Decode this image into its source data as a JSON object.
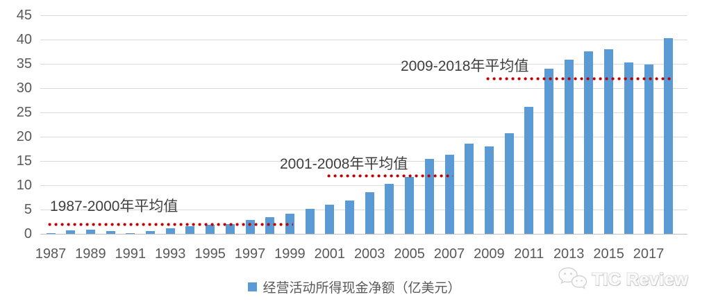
{
  "chart_data": {
    "type": "bar",
    "title": "",
    "categories": [
      1987,
      1988,
      1989,
      1990,
      1991,
      1992,
      1993,
      1994,
      1995,
      1996,
      1997,
      1998,
      1999,
      2000,
      2001,
      2002,
      2003,
      2004,
      2005,
      2006,
      2007,
      2008,
      2009,
      2010,
      2011,
      2012,
      2013,
      2014,
      2015,
      2016,
      2017,
      2018
    ],
    "values": [
      0.1,
      0.7,
      0.9,
      0.5,
      0.2,
      0.6,
      1.2,
      1.5,
      1.8,
      2.0,
      2.9,
      3.4,
      4.1,
      5.1,
      6.0,
      6.9,
      8.5,
      10.3,
      11.7,
      15.4,
      16.3,
      18.6,
      18.0,
      20.7,
      26.1,
      34.0,
      35.8,
      37.5,
      38.0,
      35.3,
      34.9,
      40.3
    ],
    "xlabel": "",
    "ylabel": "",
    "ylim": [
      0,
      45
    ],
    "ytick_interval": 5,
    "ytick_labels": [
      "0",
      "5",
      "10",
      "15",
      "20",
      "25",
      "30",
      "35",
      "40",
      "45"
    ],
    "xtick_labels": [
      "1987",
      "1989",
      "1991",
      "1993",
      "1995",
      "1997",
      "1999",
      "2001",
      "2003",
      "2005",
      "2007",
      "2009",
      "2011",
      "2013",
      "2015",
      "2017"
    ],
    "grid": "horizontal",
    "legend_position": "bottom-center",
    "series_name": "经营活动所得现金净额（亿美元）",
    "annotations": [
      {
        "label": "1987-2000年平均值",
        "average_value": 2,
        "line_from_year": 1987,
        "line_to_year": 1999
      },
      {
        "label": "2001-2008年平均值",
        "average_value": 12,
        "line_from_year": 2001,
        "line_to_year": 2007
      },
      {
        "label": "2009-2018年平均值",
        "average_value": 32,
        "line_from_year": 2009,
        "line_to_year": 2018
      }
    ]
  },
  "legend": {
    "label": "经营活动所得现金净额（亿美元）",
    "swatch_color": "#5b9bd5"
  },
  "watermark": {
    "text": "TIC Review",
    "icon": "wechat-icon"
  },
  "colors": {
    "bar": "#5b9bd5",
    "average_line": "#c00000",
    "gridline": "#d9d9d9",
    "axis_text": "#595959",
    "annotation_text": "#3f3f3f"
  }
}
